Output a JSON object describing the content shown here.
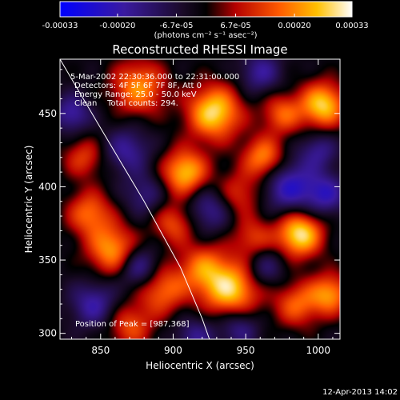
{
  "colorbar": {
    "tick_labels": [
      "-0.00033",
      "-0.00020",
      "-6.7e-05",
      "6.7e-05",
      "0.00020",
      "0.00033"
    ],
    "unit_label": "(photons cm⁻² s⁻¹ asec⁻²)",
    "range": [
      -0.00033,
      0.00033
    ]
  },
  "chart_data": {
    "type": "heatmap",
    "title": "Reconstructed RHESSI Image",
    "xlabel": "Heliocentric X (arcsec)",
    "ylabel": "Heliocentric Y (arcsec)",
    "xlim": [
      822,
      1015
    ],
    "ylim": [
      296,
      487
    ],
    "xticks": [
      850,
      900,
      950,
      1000
    ],
    "yticks": [
      300,
      350,
      400,
      450
    ],
    "annotations": [
      "5-Mar-2002 22:30:36.000 to 22:31:00.000",
      "Detectors: 4F 5F 6F 7F 8F, Att 0",
      "Energy Range: 25.0 - 50.0 keV",
      "Clean    Total counts: 294."
    ],
    "peak_label": "Position of Peak = [987,368]",
    "peak": [
      987,
      368
    ],
    "sources": [
      {
        "x": 987,
        "y": 368,
        "v": 1.0,
        "s": 11
      },
      {
        "x": 928,
        "y": 451,
        "v": 0.95,
        "s": 13
      },
      {
        "x": 908,
        "y": 410,
        "v": 0.85,
        "s": 11
      },
      {
        "x": 876,
        "y": 468,
        "v": 0.7,
        "s": 13
      },
      {
        "x": 858,
        "y": 357,
        "v": 0.75,
        "s": 12
      },
      {
        "x": 842,
        "y": 382,
        "v": 0.6,
        "s": 11
      },
      {
        "x": 1003,
        "y": 456,
        "v": 0.9,
        "s": 11
      },
      {
        "x": 975,
        "y": 450,
        "v": 0.55,
        "s": 10
      },
      {
        "x": 962,
        "y": 420,
        "v": 0.7,
        "s": 10
      },
      {
        "x": 940,
        "y": 330,
        "v": 0.9,
        "s": 14
      },
      {
        "x": 920,
        "y": 345,
        "v": 0.55,
        "s": 12
      },
      {
        "x": 892,
        "y": 330,
        "v": 0.6,
        "s": 12
      },
      {
        "x": 900,
        "y": 375,
        "v": 0.5,
        "s": 10
      },
      {
        "x": 985,
        "y": 320,
        "v": 0.55,
        "s": 11
      },
      {
        "x": 1008,
        "y": 327,
        "v": 0.7,
        "s": 10
      },
      {
        "x": 870,
        "y": 305,
        "v": 0.5,
        "s": 11
      },
      {
        "x": 945,
        "y": 395,
        "v": 0.45,
        "s": 11
      },
      {
        "x": 955,
        "y": 365,
        "v": 0.45,
        "s": 10
      },
      {
        "x": 838,
        "y": 420,
        "v": 0.45,
        "s": 10
      },
      {
        "x": 868,
        "y": 425,
        "v": -0.45,
        "s": 11
      },
      {
        "x": 845,
        "y": 320,
        "v": -0.5,
        "s": 11
      },
      {
        "x": 876,
        "y": 345,
        "v": -0.55,
        "s": 10
      },
      {
        "x": 830,
        "y": 450,
        "v": -0.5,
        "s": 9
      },
      {
        "x": 980,
        "y": 400,
        "v": -0.6,
        "s": 13
      },
      {
        "x": 1005,
        "y": 395,
        "v": -0.5,
        "s": 10
      },
      {
        "x": 962,
        "y": 345,
        "v": -0.4,
        "s": 10
      },
      {
        "x": 925,
        "y": 385,
        "v": -0.45,
        "s": 11
      },
      {
        "x": 960,
        "y": 478,
        "v": -0.45,
        "s": 10
      },
      {
        "x": 945,
        "y": 305,
        "v": -0.45,
        "s": 10
      },
      {
        "x": 880,
        "y": 395,
        "v": -0.35,
        "s": 10
      },
      {
        "x": 1000,
        "y": 425,
        "v": -0.4,
        "s": 9
      },
      {
        "x": 915,
        "y": 298,
        "v": -0.4,
        "s": 10
      }
    ],
    "limb_curve": [
      [
        822,
        487
      ],
      [
        850,
        440
      ],
      [
        880,
        390
      ],
      [
        905,
        345
      ],
      [
        920,
        310
      ],
      [
        925,
        296
      ]
    ]
  },
  "timestamp": "12-Apr-2013 14:02",
  "colors": {
    "background": "#000000",
    "text": "#ffffff",
    "limb": "#ffffff"
  }
}
